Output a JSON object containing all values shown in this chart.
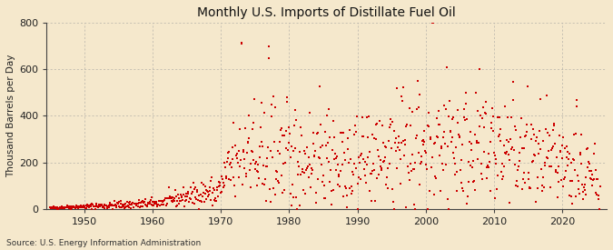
{
  "title": "Monthly U.S. Imports of Distillate Fuel Oil",
  "ylabel": "Thousand Barrels per Day",
  "source": "Source: U.S. Energy Information Administration",
  "bg_color": "#f5e8cc",
  "plot_bg_color": "#f5e8cc",
  "marker_color": "#cc0000",
  "marker_size": 4,
  "grid_color": "#999999",
  "ylim": [
    0,
    800
  ],
  "yticks": [
    0,
    200,
    400,
    600,
    800
  ],
  "xmin": 1944.5,
  "xmax": 2026.5,
  "xticks": [
    1950,
    1960,
    1970,
    1980,
    1990,
    2000,
    2010,
    2020
  ]
}
